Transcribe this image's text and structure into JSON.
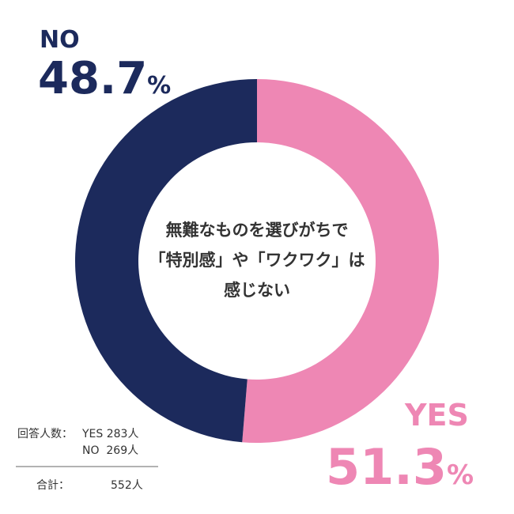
{
  "chart_data": {
    "type": "donut",
    "categories": [
      "YES",
      "NO"
    ],
    "values": [
      51.3,
      48.7
    ],
    "unit": "%",
    "colors": [
      "#ee87b4",
      "#1c2a5c"
    ],
    "center_text": [
      "無難なものを選びがちで",
      "「特別感」や「ワクワク」は",
      "感じない"
    ],
    "note": {
      "label": "回答人数：",
      "rows": [
        "YES 283人",
        "NO  269人"
      ],
      "total_label": "合計：",
      "total": "552人"
    }
  }
}
